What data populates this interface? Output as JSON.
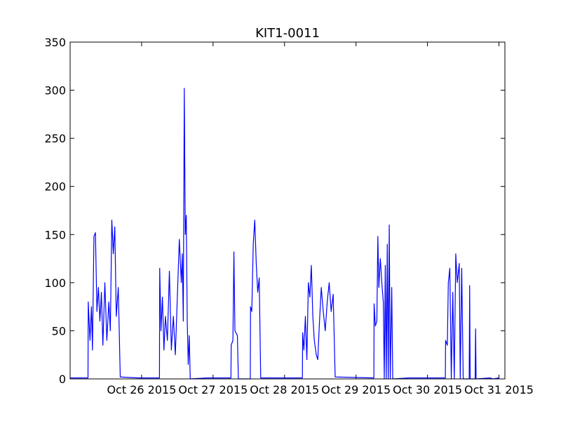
{
  "chart_data": {
    "type": "line",
    "title": "KIT1-0011",
    "xlabel": "",
    "ylabel": "",
    "xlim": [
      "2015-10-25 00:00",
      "2015-10-31 00:00"
    ],
    "ylim": [
      0,
      350
    ],
    "grid": false,
    "legend": "none",
    "y_ticks": [
      {
        "value": 0,
        "label": "0"
      },
      {
        "value": 50,
        "label": "50"
      },
      {
        "value": 100,
        "label": "100"
      },
      {
        "value": 150,
        "label": "150"
      },
      {
        "value": 200,
        "label": "200"
      },
      {
        "value": 250,
        "label": "250"
      },
      {
        "value": 300,
        "label": "300"
      },
      {
        "value": 350,
        "label": "350"
      }
    ],
    "x_ticks": [
      {
        "value": "2015-10-26 00:00",
        "label": "Oct 26 2015"
      },
      {
        "value": "2015-10-27 00:00",
        "label": "Oct 27 2015"
      },
      {
        "value": "2015-10-28 00:00",
        "label": "Oct 28 2015"
      },
      {
        "value": "2015-10-29 00:00",
        "label": "Oct 29 2015"
      },
      {
        "value": "2015-10-30 00:00",
        "label": "Oct 30 2015"
      },
      {
        "value": "2015-10-31 00:00",
        "label": "Oct 31 2015"
      }
    ],
    "series": [
      {
        "color": "#0000ff",
        "points": [
          [
            "2015-10-25 00:00",
            1
          ],
          [
            "2015-10-25 06:00",
            1
          ],
          [
            "2015-10-25 06:05",
            80
          ],
          [
            "2015-10-25 06:40",
            40
          ],
          [
            "2015-10-25 07:10",
            75
          ],
          [
            "2015-10-25 07:30",
            30
          ],
          [
            "2015-10-25 08:00",
            148
          ],
          [
            "2015-10-25 08:30",
            152
          ],
          [
            "2015-10-25 09:00",
            70
          ],
          [
            "2015-10-25 09:30",
            95
          ],
          [
            "2015-10-25 10:00",
            60
          ],
          [
            "2015-10-25 10:30",
            90
          ],
          [
            "2015-10-25 11:00",
            35
          ],
          [
            "2015-10-25 11:40",
            100
          ],
          [
            "2015-10-25 12:20",
            40
          ],
          [
            "2015-10-25 13:00",
            80
          ],
          [
            "2015-10-25 13:30",
            50
          ],
          [
            "2015-10-25 14:00",
            165
          ],
          [
            "2015-10-25 14:30",
            130
          ],
          [
            "2015-10-25 15:00",
            158
          ],
          [
            "2015-10-25 15:30",
            65
          ],
          [
            "2015-10-25 16:10",
            95
          ],
          [
            "2015-10-25 16:50",
            2
          ],
          [
            "2015-10-25 23:00",
            1
          ],
          [
            "2015-10-26 06:00",
            1
          ],
          [
            "2015-10-26 06:05",
            115
          ],
          [
            "2015-10-26 06:30",
            50
          ],
          [
            "2015-10-26 07:00",
            85
          ],
          [
            "2015-10-26 07:30",
            30
          ],
          [
            "2015-10-26 08:00",
            65
          ],
          [
            "2015-10-26 08:40",
            40
          ],
          [
            "2015-10-26 09:20",
            112
          ],
          [
            "2015-10-26 10:00",
            30
          ],
          [
            "2015-10-26 10:40",
            65
          ],
          [
            "2015-10-26 11:20",
            25
          ],
          [
            "2015-10-26 12:00",
            85
          ],
          [
            "2015-10-26 12:40",
            145
          ],
          [
            "2015-10-26 13:20",
            100
          ],
          [
            "2015-10-26 13:40",
            130
          ],
          [
            "2015-10-26 14:00",
            60
          ],
          [
            "2015-10-26 14:20",
            302
          ],
          [
            "2015-10-26 14:40",
            150
          ],
          [
            "2015-10-26 15:00",
            170
          ],
          [
            "2015-10-26 15:20",
            60
          ],
          [
            "2015-10-26 15:40",
            15
          ],
          [
            "2015-10-26 16:00",
            45
          ],
          [
            "2015-10-26 16:20",
            0
          ],
          [
            "2015-10-26 22:00",
            1
          ],
          [
            "2015-10-27 06:00",
            1
          ],
          [
            "2015-10-27 06:05",
            35
          ],
          [
            "2015-10-27 06:40",
            40
          ],
          [
            "2015-10-27 07:00",
            132
          ],
          [
            "2015-10-27 07:20",
            50
          ],
          [
            "2015-10-27 08:10",
            45
          ],
          [
            "2015-10-27 08:30",
            0
          ],
          [
            "2015-10-27 12:30",
            0
          ],
          [
            "2015-10-27 12:35",
            75
          ],
          [
            "2015-10-27 13:00",
            70
          ],
          [
            "2015-10-27 13:30",
            140
          ],
          [
            "2015-10-27 14:00",
            165
          ],
          [
            "2015-10-27 14:30",
            120
          ],
          [
            "2015-10-27 15:00",
            90
          ],
          [
            "2015-10-27 15:30",
            105
          ],
          [
            "2015-10-27 16:00",
            1
          ],
          [
            "2015-10-27 23:00",
            1
          ],
          [
            "2015-10-28 06:00",
            1
          ],
          [
            "2015-10-28 06:05",
            48
          ],
          [
            "2015-10-28 06:30",
            30
          ],
          [
            "2015-10-28 07:00",
            65
          ],
          [
            "2015-10-28 07:30",
            20
          ],
          [
            "2015-10-28 08:00",
            100
          ],
          [
            "2015-10-28 08:30",
            85
          ],
          [
            "2015-10-28 09:00",
            118
          ],
          [
            "2015-10-28 09:30",
            65
          ],
          [
            "2015-10-28 10:00",
            40
          ],
          [
            "2015-10-28 10:40",
            25
          ],
          [
            "2015-10-28 11:10",
            20
          ],
          [
            "2015-10-28 11:40",
            55
          ],
          [
            "2015-10-28 12:20",
            95
          ],
          [
            "2015-10-28 13:00",
            70
          ],
          [
            "2015-10-28 13:40",
            50
          ],
          [
            "2015-10-28 14:20",
            80
          ],
          [
            "2015-10-28 15:00",
            100
          ],
          [
            "2015-10-28 15:40",
            70
          ],
          [
            "2015-10-28 16:20",
            88
          ],
          [
            "2015-10-28 17:00",
            2
          ],
          [
            "2015-10-29 06:00",
            1
          ],
          [
            "2015-10-29 06:05",
            78
          ],
          [
            "2015-10-29 06:30",
            55
          ],
          [
            "2015-10-29 07:00",
            60
          ],
          [
            "2015-10-29 07:20",
            148
          ],
          [
            "2015-10-29 07:40",
            95
          ],
          [
            "2015-10-29 08:10",
            125
          ],
          [
            "2015-10-29 08:40",
            100
          ],
          [
            "2015-10-29 09:10",
            80
          ],
          [
            "2015-10-29 09:30",
            0
          ],
          [
            "2015-10-29 09:50",
            118
          ],
          [
            "2015-10-29 10:10",
            0
          ],
          [
            "2015-10-29 10:30",
            140
          ],
          [
            "2015-10-29 10:50",
            0
          ],
          [
            "2015-10-29 11:10",
            160
          ],
          [
            "2015-10-29 11:30",
            0
          ],
          [
            "2015-10-29 12:00",
            95
          ],
          [
            "2015-10-29 12:20",
            0
          ],
          [
            "2015-10-29 18:00",
            1
          ],
          [
            "2015-10-30 06:00",
            1
          ],
          [
            "2015-10-30 06:05",
            40
          ],
          [
            "2015-10-30 06:40",
            35
          ],
          [
            "2015-10-30 07:00",
            100
          ],
          [
            "2015-10-30 07:30",
            115
          ],
          [
            "2015-10-30 08:00",
            0
          ],
          [
            "2015-10-30 08:30",
            90
          ],
          [
            "2015-10-30 09:00",
            0
          ],
          [
            "2015-10-30 09:30",
            130
          ],
          [
            "2015-10-30 10:00",
            100
          ],
          [
            "2015-10-30 10:40",
            120
          ],
          [
            "2015-10-30 11:00",
            0
          ],
          [
            "2015-10-30 11:30",
            115
          ],
          [
            "2015-10-30 12:00",
            0
          ],
          [
            "2015-10-30 14:00",
            0
          ],
          [
            "2015-10-30 14:10",
            97
          ],
          [
            "2015-10-30 14:20",
            0
          ],
          [
            "2015-10-30 16:00",
            0
          ],
          [
            "2015-10-30 16:10",
            52
          ],
          [
            "2015-10-30 16:20",
            0
          ],
          [
            "2015-10-30 21:00",
            1
          ],
          [
            "2015-10-30 22:00",
            0
          ],
          [
            "2015-10-31 00:00",
            1
          ]
        ]
      }
    ]
  }
}
